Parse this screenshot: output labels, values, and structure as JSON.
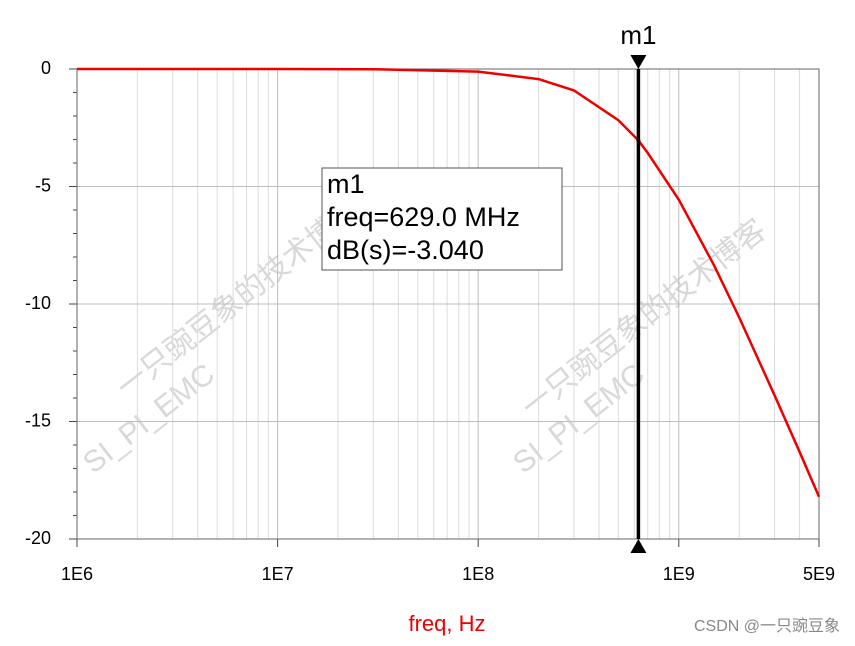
{
  "chart_data": {
    "type": "line",
    "xlog": true,
    "grid": true,
    "x": [
      1000000,
      10000000,
      30000000,
      100000000,
      200000000,
      300000000,
      500000000,
      629000000,
      700000000,
      1000000000,
      1500000000,
      2000000000,
      3000000000,
      4000000000,
      5000000000
    ],
    "values": [
      0,
      0,
      -0.01,
      -0.11,
      -0.43,
      -0.91,
      -2.18,
      -3.04,
      -3.57,
      -5.56,
      -8.36,
      -10.57,
      -13.88,
      -16.29,
      -18.2
    ],
    "color": "#ee0000",
    "xlim": [
      1000000,
      5000000000
    ],
    "xticks": [
      {
        "value": 1000000,
        "label": "1E6"
      },
      {
        "value": 10000000,
        "label": "1E7"
      },
      {
        "value": 100000000,
        "label": "1E8"
      },
      {
        "value": 1000000000,
        "label": "1E9"
      },
      {
        "value": 5000000000,
        "label": "5E9"
      }
    ],
    "ylim": [
      -20,
      0
    ],
    "yticks": [
      0,
      -5,
      -10,
      -15,
      -20
    ],
    "x_label": "freq, Hz",
    "markers": [
      {
        "name": "m1",
        "x": 629000000,
        "y": -3.04,
        "lines": [
          "m1",
          "freq=629.0 MHz",
          "dB(s)=-3.040"
        ]
      }
    ]
  },
  "watermarks": [
    "一只豌豆象的技术博客",
    "SI_PI_EMC"
  ],
  "footer": "CSDN @一只豌豆象"
}
